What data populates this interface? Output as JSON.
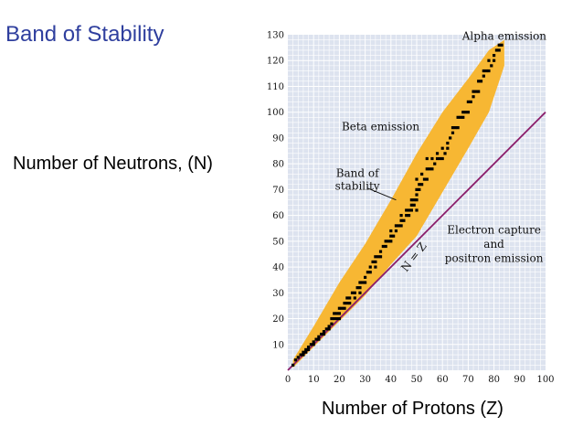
{
  "slide": {
    "title": "Band of Stability",
    "y_axis_caption": "Number of Neutrons, (N)",
    "x_axis_caption": "Number of Protons (Z)"
  },
  "chart_data": {
    "type": "scatter",
    "xlabel": "Number of Protons (Z)",
    "ylabel": "Number of Neutrons, (N)",
    "xlim": [
      0,
      100
    ],
    "ylim": [
      0,
      130
    ],
    "xticks": [
      0,
      10,
      20,
      30,
      40,
      50,
      60,
      70,
      80,
      90,
      100
    ],
    "yticks": [
      10,
      20,
      30,
      40,
      50,
      60,
      70,
      80,
      90,
      100,
      110,
      120,
      130
    ],
    "grid": true,
    "background_color": "#dde3ef",
    "band_color": "#f7b733",
    "point_color": "#000000",
    "line_color": "#8b1e6b",
    "band": {
      "upper": [
        [
          2,
          4
        ],
        [
          10,
          17
        ],
        [
          20,
          34
        ],
        [
          30,
          49
        ],
        [
          40,
          66
        ],
        [
          50,
          84
        ],
        [
          60,
          100
        ],
        [
          70,
          113
        ],
        [
          78,
          124
        ],
        [
          84,
          128
        ]
      ],
      "lower": [
        [
          2,
          1
        ],
        [
          10,
          9
        ],
        [
          20,
          19
        ],
        [
          30,
          29
        ],
        [
          40,
          41
        ],
        [
          50,
          52
        ],
        [
          60,
          69
        ],
        [
          70,
          86
        ],
        [
          78,
          100
        ],
        [
          84,
          118
        ]
      ]
    },
    "reference_line": {
      "label": "N = Z",
      "points": [
        [
          0,
          0
        ],
        [
          100,
          100
        ]
      ]
    },
    "points": [
      [
        2,
        2
      ],
      [
        3,
        4
      ],
      [
        4,
        5
      ],
      [
        5,
        6
      ],
      [
        6,
        6
      ],
      [
        6,
        7
      ],
      [
        7,
        7
      ],
      [
        7,
        8
      ],
      [
        8,
        8
      ],
      [
        8,
        9
      ],
      [
        9,
        10
      ],
      [
        10,
        10
      ],
      [
        10,
        11
      ],
      [
        11,
        12
      ],
      [
        12,
        12
      ],
      [
        12,
        13
      ],
      [
        13,
        14
      ],
      [
        14,
        14
      ],
      [
        14,
        15
      ],
      [
        15,
        16
      ],
      [
        16,
        16
      ],
      [
        16,
        17
      ],
      [
        17,
        18
      ],
      [
        17,
        20
      ],
      [
        18,
        20
      ],
      [
        18,
        22
      ],
      [
        19,
        20
      ],
      [
        19,
        22
      ],
      [
        20,
        20
      ],
      [
        20,
        22
      ],
      [
        20,
        24
      ],
      [
        21,
        24
      ],
      [
        22,
        24
      ],
      [
        22,
        26
      ],
      [
        23,
        26
      ],
      [
        23,
        28
      ],
      [
        24,
        26
      ],
      [
        24,
        28
      ],
      [
        25,
        30
      ],
      [
        26,
        28
      ],
      [
        26,
        30
      ],
      [
        27,
        32
      ],
      [
        28,
        30
      ],
      [
        28,
        32
      ],
      [
        28,
        34
      ],
      [
        29,
        34
      ],
      [
        30,
        34
      ],
      [
        30,
        36
      ],
      [
        31,
        38
      ],
      [
        32,
        38
      ],
      [
        32,
        40
      ],
      [
        33,
        42
      ],
      [
        34,
        40
      ],
      [
        34,
        42
      ],
      [
        34,
        44
      ],
      [
        35,
        44
      ],
      [
        36,
        44
      ],
      [
        36,
        46
      ],
      [
        37,
        48
      ],
      [
        38,
        48
      ],
      [
        38,
        50
      ],
      [
        39,
        50
      ],
      [
        40,
        50
      ],
      [
        40,
        52
      ],
      [
        40,
        54
      ],
      [
        41,
        52
      ],
      [
        42,
        54
      ],
      [
        42,
        56
      ],
      [
        43,
        56
      ],
      [
        44,
        56
      ],
      [
        44,
        58
      ],
      [
        44,
        60
      ],
      [
        45,
        58
      ],
      [
        46,
        60
      ],
      [
        46,
        62
      ],
      [
        47,
        60
      ],
      [
        47,
        62
      ],
      [
        48,
        62
      ],
      [
        48,
        64
      ],
      [
        48,
        66
      ],
      [
        49,
        64
      ],
      [
        49,
        66
      ],
      [
        50,
        62
      ],
      [
        50,
        66
      ],
      [
        50,
        68
      ],
      [
        50,
        70
      ],
      [
        50,
        74
      ],
      [
        51,
        70
      ],
      [
        51,
        72
      ],
      [
        52,
        72
      ],
      [
        52,
        76
      ],
      [
        53,
        74
      ],
      [
        54,
        74
      ],
      [
        54,
        78
      ],
      [
        54,
        82
      ],
      [
        55,
        78
      ],
      [
        56,
        78
      ],
      [
        56,
        82
      ],
      [
        57,
        80
      ],
      [
        58,
        82
      ],
      [
        58,
        84
      ],
      [
        59,
        82
      ],
      [
        60,
        82
      ],
      [
        60,
        86
      ],
      [
        61,
        84
      ],
      [
        62,
        86
      ],
      [
        62,
        88
      ],
      [
        63,
        90
      ],
      [
        64,
        92
      ],
      [
        64,
        94
      ],
      [
        65,
        94
      ],
      [
        66,
        94
      ],
      [
        66,
        98
      ],
      [
        67,
        98
      ],
      [
        68,
        98
      ],
      [
        68,
        100
      ],
      [
        69,
        100
      ],
      [
        70,
        100
      ],
      [
        70,
        104
      ],
      [
        71,
        104
      ],
      [
        72,
        106
      ],
      [
        72,
        108
      ],
      [
        73,
        108
      ],
      [
        74,
        108
      ],
      [
        74,
        112
      ],
      [
        75,
        112
      ],
      [
        76,
        114
      ],
      [
        76,
        116
      ],
      [
        77,
        116
      ],
      [
        78,
        116
      ],
      [
        78,
        120
      ],
      [
        79,
        118
      ],
      [
        80,
        120
      ],
      [
        80,
        122
      ],
      [
        81,
        124
      ],
      [
        82,
        124
      ],
      [
        82,
        126
      ],
      [
        83,
        126
      ]
    ],
    "annotations": [
      {
        "text": "Alpha emission",
        "x": 84,
        "y": 128
      },
      {
        "text": "Beta emission",
        "x": 36,
        "y": 93
      },
      {
        "text": "Band of",
        "x": 27,
        "y": 75
      },
      {
        "text": "stability",
        "x": 27,
        "y": 70
      },
      {
        "text": "Electron capture",
        "x": 80,
        "y": 53
      },
      {
        "text": "and",
        "x": 80,
        "y": 47.5
      },
      {
        "text": "positron emission",
        "x": 80,
        "y": 42
      },
      {
        "text": "N = Z",
        "x": 50,
        "y": 43
      }
    ]
  }
}
